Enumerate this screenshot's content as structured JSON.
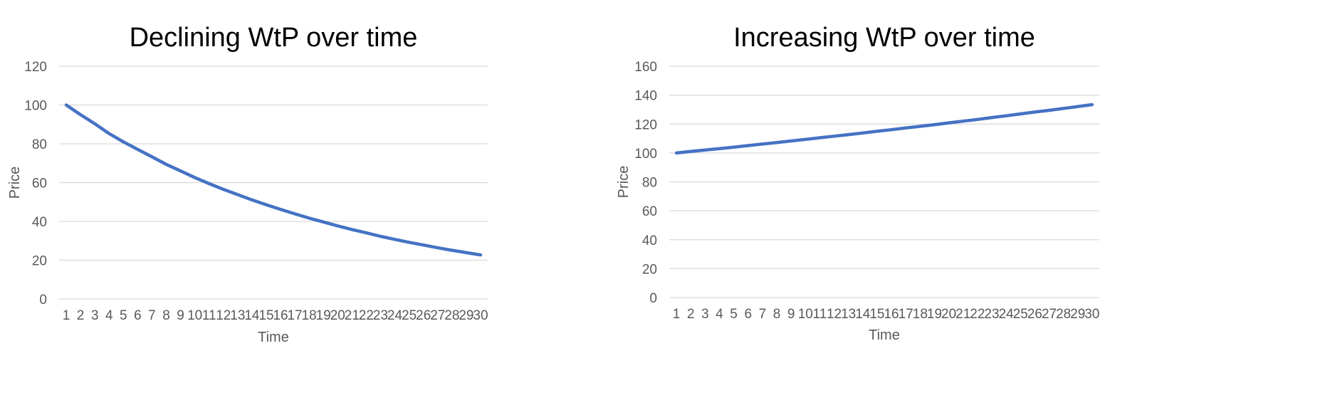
{
  "colors": {
    "series": "#4472c4",
    "grid": "#d9d9d9",
    "tick": "#595959"
  },
  "chart_data": [
    {
      "type": "line",
      "title": "Declining WtP over time",
      "xlabel": "Time",
      "ylabel": "Price",
      "ylim": [
        0,
        120
      ],
      "yticks": [
        0,
        20,
        40,
        60,
        80,
        100,
        120
      ],
      "grid": true,
      "legend": "none",
      "categories": [
        "1",
        "2",
        "3",
        "4",
        "5",
        "6",
        "7",
        "8",
        "9",
        "10",
        "11",
        "12",
        "13",
        "14",
        "15",
        "16",
        "17",
        "18",
        "19",
        "20",
        "21",
        "22",
        "23",
        "24",
        "25",
        "26",
        "27",
        "28",
        "29",
        "30"
      ],
      "series": [
        {
          "values": [
            100,
            95,
            90.3,
            85.3,
            81,
            77.1,
            73.3,
            69.4,
            66,
            62.6,
            59.5,
            56.5,
            53.8,
            51.1,
            48.6,
            46.2,
            43.9,
            41.7,
            39.7,
            37.7,
            35.8,
            34.1,
            32.3,
            30.7,
            29.2,
            27.8,
            26.4,
            25.1,
            23.9,
            22.7
          ]
        }
      ]
    },
    {
      "type": "line",
      "title": "Increasing WtP over time",
      "xlabel": "Time",
      "ylabel": "Price",
      "ylim": [
        0,
        160
      ],
      "yticks": [
        0,
        20,
        40,
        60,
        80,
        100,
        120,
        140,
        160
      ],
      "grid": true,
      "legend": "none",
      "categories": [
        "1",
        "2",
        "3",
        "4",
        "5",
        "6",
        "7",
        "8",
        "9",
        "10",
        "11",
        "12",
        "13",
        "14",
        "15",
        "16",
        "17",
        "18",
        "19",
        "20",
        "21",
        "22",
        "23",
        "24",
        "25",
        "26",
        "27",
        "28",
        "29",
        "30"
      ],
      "series": [
        {
          "values": [
            100,
            101,
            102,
            103,
            104,
            105.1,
            106.2,
            107.2,
            108.3,
            109.4,
            110.5,
            111.6,
            112.7,
            113.8,
            115,
            116.1,
            117.3,
            118.4,
            119.6,
            120.8,
            122,
            123.2,
            124.5,
            125.7,
            127,
            128.3,
            129.5,
            130.8,
            132.1,
            133.4
          ]
        }
      ]
    }
  ]
}
